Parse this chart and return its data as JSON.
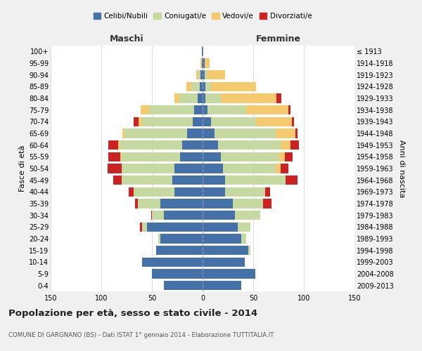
{
  "age_groups": [
    "0-4",
    "5-9",
    "10-14",
    "15-19",
    "20-24",
    "25-29",
    "30-34",
    "35-39",
    "40-44",
    "45-49",
    "50-54",
    "55-59",
    "60-64",
    "65-69",
    "70-74",
    "75-79",
    "80-84",
    "85-89",
    "90-94",
    "95-99",
    "100+"
  ],
  "birth_years": [
    "2009-2013",
    "2004-2008",
    "1999-2003",
    "1994-1998",
    "1989-1993",
    "1984-1988",
    "1979-1983",
    "1974-1978",
    "1969-1973",
    "1964-1968",
    "1959-1963",
    "1954-1958",
    "1949-1953",
    "1944-1948",
    "1939-1943",
    "1934-1938",
    "1929-1933",
    "1924-1928",
    "1919-1923",
    "1914-1918",
    "≤ 1913"
  ],
  "maschi": {
    "celibi": [
      38,
      50,
      60,
      46,
      42,
      55,
      38,
      42,
      28,
      30,
      28,
      22,
      20,
      15,
      10,
      8,
      5,
      3,
      2,
      1,
      1
    ],
    "coniugati": [
      0,
      0,
      0,
      0,
      2,
      5,
      12,
      22,
      40,
      50,
      52,
      58,
      62,
      62,
      50,
      45,
      18,
      8,
      2,
      0,
      0
    ],
    "vedovi": [
      0,
      0,
      0,
      0,
      0,
      0,
      0,
      0,
      0,
      0,
      0,
      1,
      1,
      2,
      3,
      8,
      5,
      5,
      2,
      1,
      0
    ],
    "divorziati": [
      0,
      0,
      0,
      0,
      0,
      2,
      1,
      3,
      5,
      8,
      14,
      12,
      10,
      0,
      5,
      0,
      0,
      0,
      0,
      0,
      0
    ]
  },
  "femmine": {
    "nubili": [
      38,
      52,
      42,
      45,
      38,
      35,
      32,
      30,
      22,
      22,
      20,
      18,
      15,
      12,
      8,
      5,
      3,
      3,
      2,
      2,
      1
    ],
    "coniugate": [
      0,
      0,
      0,
      2,
      5,
      12,
      25,
      30,
      40,
      60,
      52,
      58,
      62,
      60,
      45,
      38,
      15,
      5,
      2,
      0,
      0
    ],
    "vedove": [
      0,
      0,
      0,
      0,
      0,
      0,
      0,
      0,
      0,
      0,
      5,
      5,
      10,
      20,
      35,
      42,
      55,
      45,
      18,
      5,
      0
    ],
    "divorziate": [
      0,
      0,
      0,
      0,
      0,
      0,
      0,
      8,
      5,
      12,
      8,
      8,
      8,
      2,
      2,
      2,
      5,
      0,
      0,
      0,
      0
    ]
  },
  "colors": {
    "celibi": "#4472a8",
    "coniugati": "#c5d9a0",
    "vedovi": "#f5c96e",
    "divorziati": "#cc2222"
  },
  "xlim": 150,
  "title": "Popolazione per età, sesso e stato civile - 2014",
  "subtitle": "COMUNE DI GARGNANO (BS) - Dati ISTAT 1° gennaio 2014 - Elaborazione TUTTITALIA.IT",
  "ylabel_left": "Fasce di età",
  "ylabel_right": "Anni di nascita",
  "xlabel_maschi": "Maschi",
  "xlabel_femmine": "Femmine",
  "legend_labels": [
    "Celibi/Nubili",
    "Coniugati/e",
    "Vedovi/e",
    "Divorziati/e"
  ],
  "bg_color": "#f0f0f0",
  "plot_bg": "#ffffff"
}
